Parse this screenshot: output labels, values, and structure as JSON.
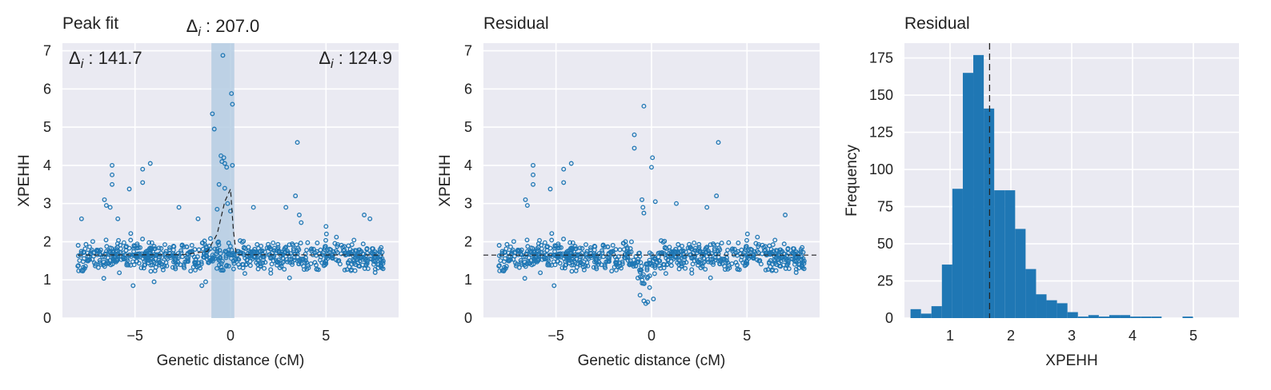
{
  "theme": {
    "panel_bg": "#eaeaf2",
    "grid": "#ffffff",
    "accent": "#1f77b4",
    "band": "#b5cde3",
    "text": "#222222"
  },
  "chart_data": [
    {
      "type": "scatter",
      "title": "Peak fit",
      "xlabel": "Genetic distance (cM)",
      "ylabel": "XPEHH",
      "xlim": [
        -8.8,
        8.8
      ],
      "ylim": [
        0,
        7.2
      ],
      "xticks": [
        {
          "v": -5,
          "label": "−5"
        },
        {
          "v": 0,
          "label": "0"
        },
        {
          "v": 5,
          "label": "5"
        }
      ],
      "yticks": [
        {
          "v": 0,
          "label": "0"
        },
        {
          "v": 1,
          "label": "1"
        },
        {
          "v": 2,
          "label": "2"
        },
        {
          "v": 3,
          "label": "3"
        },
        {
          "v": 4,
          "label": "4"
        },
        {
          "v": 5,
          "label": "5"
        },
        {
          "v": 6,
          "label": "6"
        },
        {
          "v": 7,
          "label": "7"
        }
      ],
      "grid": true,
      "points_style": "hollow circles",
      "highlight_band": [
        -1.0,
        0.2
      ],
      "baseline": 1.65,
      "peak_fit": {
        "x": [
          -8,
          -2.5,
          -1.2,
          -0.7,
          -0.3,
          0.0,
          0.15,
          0.3,
          8
        ],
        "y": [
          1.65,
          1.66,
          1.75,
          2.2,
          3.05,
          3.38,
          2.3,
          1.66,
          1.65
        ]
      },
      "highlight_points": [
        {
          "x": -0.4,
          "y": 6.88
        },
        {
          "x": 0.05,
          "y": 5.88
        },
        {
          "x": 0.1,
          "y": 5.6
        },
        {
          "x": -0.95,
          "y": 5.35
        },
        {
          "x": -0.85,
          "y": 4.95
        },
        {
          "x": -0.5,
          "y": 4.25
        },
        {
          "x": -0.35,
          "y": 4.2
        },
        {
          "x": -0.45,
          "y": 4.1
        },
        {
          "x": -0.3,
          "y": 4.05
        },
        {
          "x": 0.1,
          "y": 4.0
        },
        {
          "x": -0.2,
          "y": 3.95
        },
        {
          "x": -0.6,
          "y": 3.5
        },
        {
          "x": -0.15,
          "y": 3.0
        },
        {
          "x": 0.0,
          "y": 2.8
        },
        {
          "x": -0.7,
          "y": 2.85
        },
        {
          "x": -0.3,
          "y": 3.4
        }
      ],
      "extra_points": [
        {
          "x": -6.2,
          "y": 4.0
        },
        {
          "x": -6.2,
          "y": 3.75
        },
        {
          "x": -6.2,
          "y": 3.5
        },
        {
          "x": -4.6,
          "y": 3.9
        },
        {
          "x": -4.2,
          "y": 4.05
        },
        {
          "x": -4.6,
          "y": 3.55
        },
        {
          "x": -5.3,
          "y": 3.38
        },
        {
          "x": 3.5,
          "y": 4.6
        },
        {
          "x": 3.4,
          "y": 3.2
        },
        {
          "x": -6.6,
          "y": 3.1
        },
        {
          "x": -6.5,
          "y": 2.95
        },
        {
          "x": -6.3,
          "y": 2.9
        },
        {
          "x": -5.9,
          "y": 2.6
        },
        {
          "x": 1.2,
          "y": 2.9
        },
        {
          "x": 2.9,
          "y": 2.9
        },
        {
          "x": 7.0,
          "y": 2.7
        },
        {
          "x": 7.3,
          "y": 2.6
        },
        {
          "x": -7.8,
          "y": 2.6
        },
        {
          "x": -2.7,
          "y": 2.9
        },
        {
          "x": -1.7,
          "y": 2.6
        },
        {
          "x": 3.6,
          "y": 2.7
        },
        {
          "x": 3.7,
          "y": 2.5
        },
        {
          "x": 5.0,
          "y": 2.4
        },
        {
          "x": -1.5,
          "y": 0.85
        },
        {
          "x": -1.3,
          "y": 0.95
        },
        {
          "x": -4.0,
          "y": 0.95
        },
        {
          "x": -5.1,
          "y": 0.85
        }
      ],
      "annotations": [
        {
          "text": "Δi : 141.7",
          "pos": "top-left"
        },
        {
          "text": "Δi : 207.0",
          "pos": "above band"
        },
        {
          "text": "Δi : 124.9",
          "pos": "top-right"
        }
      ]
    },
    {
      "type": "scatter",
      "title": "Residual",
      "xlabel": "Genetic distance (cM)",
      "ylabel": "XPEHH",
      "xlim": [
        -8.8,
        8.8
      ],
      "ylim": [
        0,
        7.2
      ],
      "xticks": [
        {
          "v": -5,
          "label": "−5"
        },
        {
          "v": 0,
          "label": "0"
        },
        {
          "v": 5,
          "label": "5"
        }
      ],
      "yticks": [
        {
          "v": 0,
          "label": "0"
        },
        {
          "v": 1,
          "label": "1"
        },
        {
          "v": 2,
          "label": "2"
        },
        {
          "v": 3,
          "label": "3"
        },
        {
          "v": 4,
          "label": "4"
        },
        {
          "v": 5,
          "label": "5"
        },
        {
          "v": 6,
          "label": "6"
        },
        {
          "v": 7,
          "label": "7"
        }
      ],
      "grid": true,
      "points_style": "hollow circles",
      "baseline": 1.65,
      "extra_points": [
        {
          "x": -0.4,
          "y": 5.55
        },
        {
          "x": -0.9,
          "y": 4.8
        },
        {
          "x": -0.9,
          "y": 4.45
        },
        {
          "x": 0.05,
          "y": 4.2
        },
        {
          "x": 0.0,
          "y": 3.95
        },
        {
          "x": -0.5,
          "y": 3.1
        },
        {
          "x": -0.45,
          "y": 2.9
        },
        {
          "x": -0.4,
          "y": 2.75
        },
        {
          "x": 0.2,
          "y": 3.05
        },
        {
          "x": 3.5,
          "y": 4.6
        },
        {
          "x": 3.4,
          "y": 3.2
        },
        {
          "x": -6.2,
          "y": 4.0
        },
        {
          "x": -6.2,
          "y": 3.75
        },
        {
          "x": -6.2,
          "y": 3.5
        },
        {
          "x": -4.6,
          "y": 3.9
        },
        {
          "x": -4.2,
          "y": 4.05
        },
        {
          "x": -4.6,
          "y": 3.55
        },
        {
          "x": -5.3,
          "y": 3.38
        },
        {
          "x": -6.6,
          "y": 3.1
        },
        {
          "x": -6.5,
          "y": 2.95
        },
        {
          "x": 1.3,
          "y": 3.0
        },
        {
          "x": 2.9,
          "y": 2.9
        },
        {
          "x": 7.0,
          "y": 2.7
        },
        {
          "x": -0.4,
          "y": 0.45
        },
        {
          "x": -0.3,
          "y": 0.38
        },
        {
          "x": -0.2,
          "y": 0.42
        },
        {
          "x": 0.1,
          "y": 0.5
        },
        {
          "x": -0.6,
          "y": 0.6
        },
        {
          "x": -0.1,
          "y": 0.8
        },
        {
          "x": -5.1,
          "y": 0.85
        }
      ]
    },
    {
      "type": "bar",
      "title": "Residual",
      "xlabel": "XPEHH",
      "ylabel": "Frequency",
      "xlim": [
        0.25,
        5.75
      ],
      "ylim": [
        0,
        185
      ],
      "xticks": [
        {
          "v": 1,
          "label": "1"
        },
        {
          "v": 2,
          "label": "2"
        },
        {
          "v": 3,
          "label": "3"
        },
        {
          "v": 4,
          "label": "4"
        },
        {
          "v": 5,
          "label": "5"
        }
      ],
      "yticks": [
        {
          "v": 0,
          "label": "0"
        },
        {
          "v": 25,
          "label": "25"
        },
        {
          "v": 50,
          "label": "50"
        },
        {
          "v": 75,
          "label": "75"
        },
        {
          "v": 100,
          "label": "100"
        },
        {
          "v": 125,
          "label": "125"
        },
        {
          "v": 150,
          "label": "150"
        },
        {
          "v": 175,
          "label": "175"
        }
      ],
      "grid": true,
      "bin_start": 0.35,
      "bin_width": 0.172,
      "values": [
        6,
        3,
        8,
        36,
        87,
        165,
        177,
        141,
        86,
        86,
        60,
        33,
        16,
        12,
        10,
        4,
        1,
        2,
        1,
        2,
        2,
        1,
        1,
        1,
        0,
        0,
        1
      ],
      "mean_line": 1.65
    }
  ]
}
